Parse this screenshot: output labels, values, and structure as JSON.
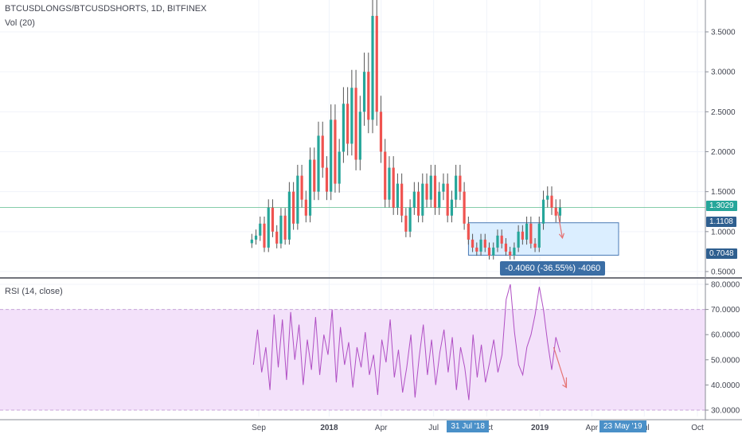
{
  "legend": {
    "symbol": "BTCUSDLONGS/BTCUSDSHORTS, 1D, BITFINEX",
    "volume": "Vol (20)",
    "rsi": "RSI (14, close)"
  },
  "price_tags": {
    "last": "1.3029",
    "upper": "1.1108",
    "lower": "0.7048"
  },
  "measure_label": "-0.4060 (-36.55%) -4060",
  "date_tags": {
    "start": "31 Jul '18",
    "end": "23 May '19"
  },
  "colors": {
    "up": "#26a69a",
    "down": "#ef5350",
    "wick": "#555555",
    "last_line": "#53b987",
    "last_tag": "#26a69a",
    "range_tag": "#2f5f8f",
    "box_fill": "#dbeeff",
    "box_border": "#4a7ab5",
    "rsi_line": "#b04fc4",
    "rsi_band": "#f3e1fa",
    "arrow": "#e57373"
  },
  "chart_data": [
    {
      "type": "candlestick",
      "title": "BTCUSDLONGS/BTCUSDSHORTS, 1D, BITFINEX",
      "y_ticks": [
        "3.5000",
        "3.0000",
        "2.5000",
        "2.0000",
        "1.5000",
        "1.0000",
        "0.5000"
      ],
      "y_tick_values": [
        3.5,
        3.0,
        2.5,
        2.0,
        1.5,
        1.0,
        0.5
      ],
      "ylim": [
        0.5,
        3.5
      ],
      "x_ticks": [
        "Sep",
        "2018",
        "Apr",
        "Jul",
        "Oct",
        "2019",
        "Apr",
        "Jul",
        "Oct"
      ],
      "x_ticks_bold": [
        "2018",
        "2019"
      ],
      "x_ticks_hidden_under_tags": [
        "Jul"
      ],
      "date_range": [
        "2017-08-20",
        "2019-02-05"
      ],
      "last_value": 1.3029,
      "measured_range": {
        "from": 1.1108,
        "to": 0.7048,
        "change": -0.406,
        "change_pct": -36.55,
        "start": "2018-07-31",
        "end": "2019-05-23"
      },
      "closes": [
        0.9,
        0.95,
        1.1,
        0.8,
        1.3,
        1.0,
        0.85,
        1.2,
        0.9,
        1.5,
        1.1,
        1.7,
        1.4,
        1.2,
        1.9,
        1.5,
        2.2,
        1.8,
        1.5,
        2.4,
        1.6,
        2.0,
        2.6,
        2.1,
        2.8,
        1.9,
        2.5,
        3.0,
        2.4,
        3.7,
        2.5,
        2.0,
        1.4,
        1.8,
        1.3,
        1.6,
        1.2,
        1.0,
        1.3,
        1.5,
        1.2,
        1.6,
        1.4,
        1.7,
        1.3,
        1.5,
        1.6,
        1.2,
        1.4,
        1.7,
        1.5,
        1.1,
        0.9,
        0.8,
        0.75,
        0.9,
        0.8,
        0.7,
        0.8,
        0.95,
        0.85,
        0.75,
        0.7,
        0.8,
        1.0,
        0.9,
        1.1,
        0.85,
        0.8,
        1.1,
        1.4,
        1.45,
        1.3,
        1.2,
        1.3
      ]
    },
    {
      "type": "line",
      "title": "RSI (14, close)",
      "y_ticks": [
        "80.0000",
        "70.0000",
        "60.0000",
        "50.0000",
        "40.0000",
        "30.0000"
      ],
      "y_tick_values": [
        80,
        70,
        60,
        50,
        40,
        30
      ],
      "ylim": [
        30,
        80
      ],
      "band": [
        30,
        70
      ],
      "values": [
        48,
        62,
        45,
        55,
        38,
        68,
        47,
        66,
        42,
        69,
        50,
        64,
        40,
        58,
        46,
        67,
        44,
        60,
        52,
        70,
        41,
        63,
        48,
        57,
        39,
        55,
        47,
        61,
        44,
        52,
        36,
        58,
        49,
        66,
        43,
        54,
        37,
        47,
        60,
        35,
        51,
        64,
        44,
        58,
        40,
        53,
        62,
        45,
        59,
        38,
        55,
        47,
        34,
        60,
        43,
        56,
        41,
        49,
        58,
        45,
        52,
        74,
        80,
        61,
        48,
        44,
        55,
        60,
        68,
        79,
        70,
        57,
        46,
        59,
        53
      ]
    }
  ]
}
